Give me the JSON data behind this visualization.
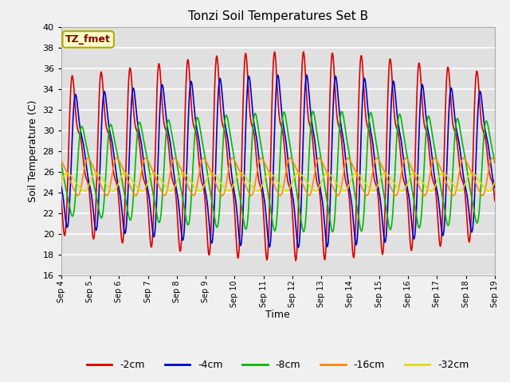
{
  "title": "Tonzi Soil Temperatures Set B",
  "xlabel": "Time",
  "ylabel": "Soil Temperature (C)",
  "ylim": [
    16,
    40
  ],
  "yticks": [
    16,
    18,
    20,
    22,
    24,
    26,
    28,
    30,
    32,
    34,
    36,
    38,
    40
  ],
  "series_colors": {
    "-2cm": "#dd0000",
    "-4cm": "#0000cc",
    "-8cm": "#00bb00",
    "-16cm": "#ff8800",
    "-32cm": "#dddd00"
  },
  "series_lw": 1.2,
  "legend_label_box": "TZ_fmet",
  "legend_box_facecolor": "#ffffcc",
  "legend_box_edgecolor": "#aaaa00",
  "legend_box_textcolor": "#880000",
  "bg_color": "#e0e0e0",
  "grid_color": "#ffffff",
  "n_points": 720,
  "x_start": 4.0,
  "x_end": 19.0,
  "xtick_positions": [
    4,
    5,
    6,
    7,
    8,
    9,
    10,
    11,
    12,
    13,
    14,
    15,
    16,
    17,
    18,
    19
  ],
  "xtick_labels": [
    "Sep 4",
    "Sep 5",
    "Sep 6",
    "Sep 7",
    "Sep 8",
    "Sep 9",
    "Sep 10",
    "Sep 11",
    "Sep 12",
    "Sep 13",
    "Sep 14",
    "Sep 15",
    "Sep 16",
    "Sep 17",
    "Sep 18",
    "Sep 19"
  ]
}
